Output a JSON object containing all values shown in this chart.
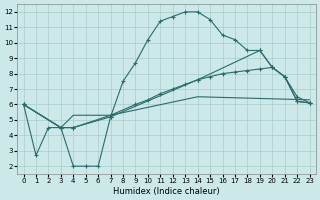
{
  "xlabel": "Humidex (Indice chaleur)",
  "bg_color": "#cce8e8",
  "grid_color": "#aacccc",
  "line_color": "#2a6b6b",
  "xlim": [
    -0.5,
    23.5
  ],
  "ylim": [
    1.5,
    12.5
  ],
  "xticks": [
    0,
    1,
    2,
    3,
    4,
    5,
    6,
    7,
    8,
    9,
    10,
    11,
    12,
    13,
    14,
    15,
    16,
    17,
    18,
    19,
    20,
    21,
    22,
    23
  ],
  "yticks": [
    2,
    3,
    4,
    5,
    6,
    7,
    8,
    9,
    10,
    11,
    12
  ],
  "line1_x": [
    0,
    1,
    2,
    3,
    4,
    5,
    6,
    7,
    8,
    9,
    10,
    11,
    12,
    13,
    14,
    15,
    16,
    17,
    18,
    19,
    20,
    21,
    22,
    23
  ],
  "line1_y": [
    6.0,
    2.7,
    4.5,
    4.5,
    2.0,
    2.0,
    2.0,
    5.2,
    7.5,
    8.7,
    10.2,
    11.4,
    11.7,
    12.0,
    12.0,
    11.5,
    10.5,
    10.2,
    9.5,
    9.5,
    8.4,
    7.8,
    6.2,
    6.1
  ],
  "line2_x": [
    0,
    3,
    4,
    7,
    9,
    10,
    11,
    12,
    13,
    14,
    15,
    16,
    17,
    18,
    19,
    20,
    21,
    22,
    23
  ],
  "line2_y": [
    6.0,
    4.5,
    4.5,
    5.3,
    6.0,
    6.3,
    6.7,
    7.0,
    7.3,
    7.6,
    7.8,
    8.0,
    8.1,
    8.2,
    8.3,
    8.4,
    7.8,
    6.2,
    6.1
  ],
  "line3_x": [
    0,
    3,
    4,
    7,
    14,
    23
  ],
  "line3_y": [
    6.0,
    4.5,
    5.3,
    5.3,
    6.5,
    6.3
  ],
  "line4_x": [
    0,
    3,
    4,
    7,
    14,
    19,
    20,
    21,
    22,
    23
  ],
  "line4_y": [
    6.0,
    4.5,
    4.5,
    5.2,
    7.6,
    9.5,
    8.4,
    7.8,
    6.5,
    6.1
  ]
}
